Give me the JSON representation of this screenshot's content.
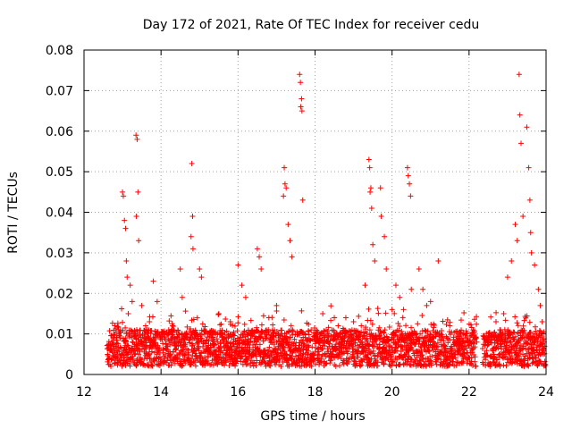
{
  "chart_data": {
    "type": "scatter",
    "title": "Day 172 of 2021, Rate Of TEC Index for receiver cedu",
    "xlabel": "GPS time / hours",
    "ylabel": "ROTI / TECUs",
    "xlim": [
      12,
      24
    ],
    "ylim": [
      0,
      0.08
    ],
    "x_ticks": [
      12,
      14,
      16,
      18,
      20,
      22,
      24
    ],
    "x_tick_labels": [
      "12",
      "14",
      "16",
      "18",
      "20",
      "22",
      "24"
    ],
    "y_ticks": [
      0,
      0.01,
      0.02,
      0.03,
      0.04,
      0.05,
      0.06,
      0.07,
      0.08
    ],
    "y_tick_labels": [
      "0",
      "0.01",
      "0.02",
      "0.03",
      "0.04",
      "0.05",
      "0.06",
      "0.07",
      "0.08"
    ],
    "grid": true,
    "marker": "+",
    "color": "#ff0000",
    "series": [
      {
        "name": "ROTI",
        "x": [
          13.0,
          13.02,
          13.05,
          13.08,
          13.35,
          13.38,
          13.4,
          13.36,
          13.42,
          14.8,
          14.82,
          14.78,
          14.83,
          17.2,
          17.22,
          17.25,
          17.18,
          17.6,
          17.62,
          17.65,
          17.63,
          17.66,
          17.68,
          19.4,
          19.42,
          19.45,
          19.43,
          19.47,
          19.7,
          19.72,
          20.4,
          20.42,
          20.45,
          20.48,
          23.3,
          23.32,
          23.35,
          23.5,
          23.55,
          23.58,
          23.2,
          23.25,
          23.6,
          23.62,
          13.1,
          13.12,
          13.2,
          13.25,
          13.15,
          13.5,
          13.6,
          16.5,
          16.55,
          16.6,
          17.3,
          17.35,
          17.4,
          18.5,
          18.6,
          19.3,
          19.5,
          19.55,
          19.8,
          19.85,
          20.1,
          20.2,
          20.3,
          20.7,
          20.8,
          21.0,
          21.2,
          16.0,
          16.1,
          16.2,
          15.0,
          15.05,
          14.5,
          14.55,
          13.8,
          13.9,
          22.7,
          22.8,
          22.9,
          23.0,
          23.1,
          23.7,
          23.8,
          23.85,
          23.9,
          12.8,
          12.9,
          13.7,
          14.2,
          14.3,
          15.5,
          15.8,
          16.8,
          17.0,
          17.9,
          18.2,
          18.8,
          19.0,
          19.2,
          20.0,
          20.5,
          20.9,
          21.5,
          21.8,
          22.0,
          22.2,
          22.5,
          23.4,
          23.95
        ],
        "y": [
          0.045,
          0.044,
          0.038,
          0.036,
          0.059,
          0.058,
          0.045,
          0.039,
          0.033,
          0.052,
          0.039,
          0.034,
          0.031,
          0.051,
          0.047,
          0.046,
          0.044,
          0.074,
          0.072,
          0.068,
          0.066,
          0.065,
          0.043,
          0.053,
          0.051,
          0.046,
          0.045,
          0.041,
          0.046,
          0.039,
          0.051,
          0.049,
          0.047,
          0.044,
          0.074,
          0.064,
          0.057,
          0.061,
          0.051,
          0.043,
          0.037,
          0.033,
          0.035,
          0.03,
          0.028,
          0.024,
          0.022,
          0.018,
          0.015,
          0.017,
          0.012,
          0.031,
          0.029,
          0.026,
          0.037,
          0.033,
          0.029,
          0.014,
          0.012,
          0.022,
          0.032,
          0.028,
          0.034,
          0.026,
          0.022,
          0.019,
          0.016,
          0.026,
          0.021,
          0.018,
          0.028,
          0.027,
          0.022,
          0.019,
          0.026,
          0.024,
          0.026,
          0.019,
          0.023,
          0.018,
          0.013,
          0.011,
          0.015,
          0.024,
          0.028,
          0.027,
          0.021,
          0.017,
          0.013,
          0.012,
          0.011,
          0.013,
          0.011,
          0.012,
          0.015,
          0.013,
          0.014,
          0.017,
          0.011,
          0.015,
          0.014,
          0.013,
          0.012,
          0.016,
          0.021,
          0.017,
          0.012,
          0.009,
          0.008,
          0.008,
          0.009,
          0.039,
          0.008
        ]
      }
    ],
    "baseline_note": "dense band of points between 0.001 and 0.012 across 12.6-24 h, gap near 22.2-22.4 h"
  }
}
